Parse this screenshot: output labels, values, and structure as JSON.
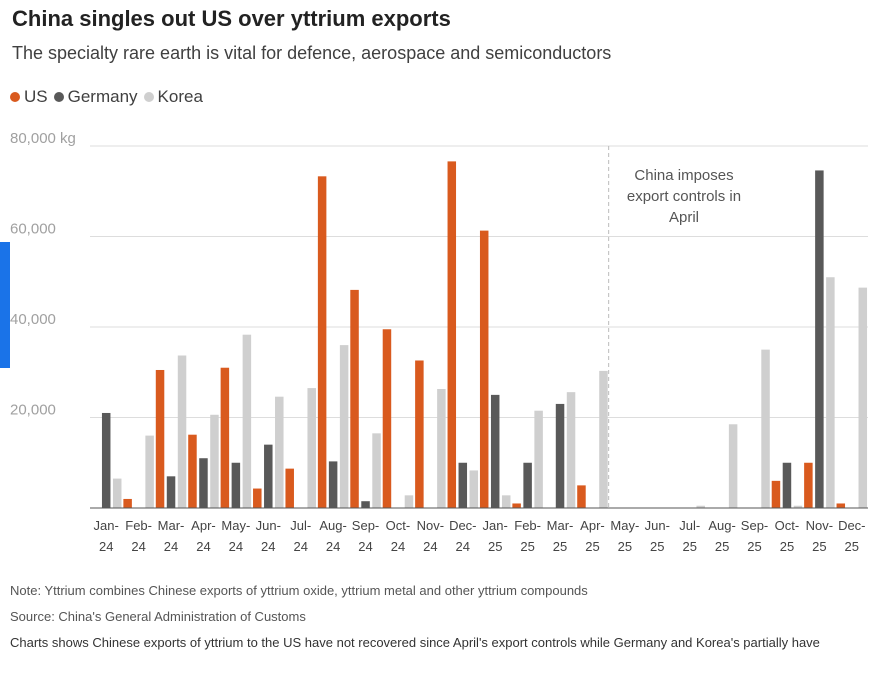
{
  "title": "China singles out US over yttrium exports",
  "subtitle": "The specialty rare earth is vital for defence, aerospace and semiconductors",
  "colors": {
    "US": "#d95a1e",
    "Germany": "#595959",
    "Korea": "#cfcfcf",
    "accent": "#1a73e8"
  },
  "legend": [
    {
      "name": "US",
      "color": "#d95a1e"
    },
    {
      "name": "Germany",
      "color": "#595959"
    },
    {
      "name": "Korea",
      "color": "#cfcfcf"
    }
  ],
  "chart_data": {
    "type": "bar",
    "categories": [
      "Jan-24",
      "Feb-24",
      "Mar-24",
      "Apr-24",
      "May-24",
      "Jun-24",
      "Jul-24",
      "Aug-24",
      "Sep-24",
      "Oct-24",
      "Nov-24",
      "Dec-24",
      "Jan-25",
      "Feb-25",
      "Mar-25",
      "Apr-25",
      "May-25",
      "Jun-25",
      "Jul-25",
      "Aug-25",
      "Sep-25",
      "Oct-25",
      "Nov-25",
      "Dec-25"
    ],
    "tick_labels_top": [
      "Jan-",
      "Feb-",
      "Mar-",
      "Apr-",
      "May-",
      "Jun-",
      "Jul-",
      "Aug-",
      "Sep-",
      "Oct-",
      "Nov-",
      "Dec-",
      "Jan-",
      "Feb-",
      "Mar-",
      "Apr-",
      "May-",
      "Jun-",
      "Jul-",
      "Aug-",
      "Sep-",
      "Oct-",
      "Nov-",
      "Dec-"
    ],
    "tick_labels_bottom": [
      "24",
      "24",
      "24",
      "24",
      "24",
      "24",
      "24",
      "24",
      "24",
      "24",
      "24",
      "24",
      "25",
      "25",
      "25",
      "25",
      "25",
      "25",
      "25",
      "25",
      "25",
      "25",
      "25",
      "25"
    ],
    "series": [
      {
        "name": "US",
        "values": [
          0,
          2000,
          30500,
          16200,
          31000,
          4300,
          8700,
          73300,
          48200,
          39500,
          32600,
          76600,
          61300,
          1000,
          0,
          5000,
          0,
          0,
          0,
          0,
          0,
          6000,
          10000,
          1000
        ]
      },
      {
        "name": "Germany",
        "values": [
          21000,
          0,
          7000,
          11000,
          10000,
          14000,
          0,
          10300,
          1500,
          0,
          0,
          10000,
          25000,
          10000,
          23000,
          0,
          0,
          0,
          0,
          0,
          0,
          10000,
          74600,
          0
        ]
      },
      {
        "name": "Korea",
        "values": [
          6500,
          16000,
          33700,
          20600,
          38300,
          24600,
          26500,
          36000,
          16500,
          2800,
          26300,
          8300,
          2800,
          21500,
          25600,
          30300,
          0,
          0,
          500,
          18500,
          35000,
          500,
          51000,
          48700
        ]
      }
    ],
    "y_ticks": [
      20000,
      40000,
      60000,
      80000
    ],
    "y_tick_labels": [
      "20,000",
      "40,000",
      "60,000",
      "80,000 kg"
    ],
    "ylim": [
      0,
      80000
    ],
    "annotation": {
      "lines": [
        "China imposes",
        "export controls in",
        "April"
      ],
      "between": [
        "Apr-25",
        "May-25"
      ]
    },
    "legend_position": "top-left",
    "grid": "horizontal"
  },
  "note": "Note: Yttrium combines Chinese exports of yttrium oxide, yttrium metal and other yttrium compounds",
  "source": "Source: China's General Administration of Customs",
  "caption": "Charts shows Chinese exports of yttrium to the US have not recovered since April's export controls while Germany and Korea's partially have"
}
